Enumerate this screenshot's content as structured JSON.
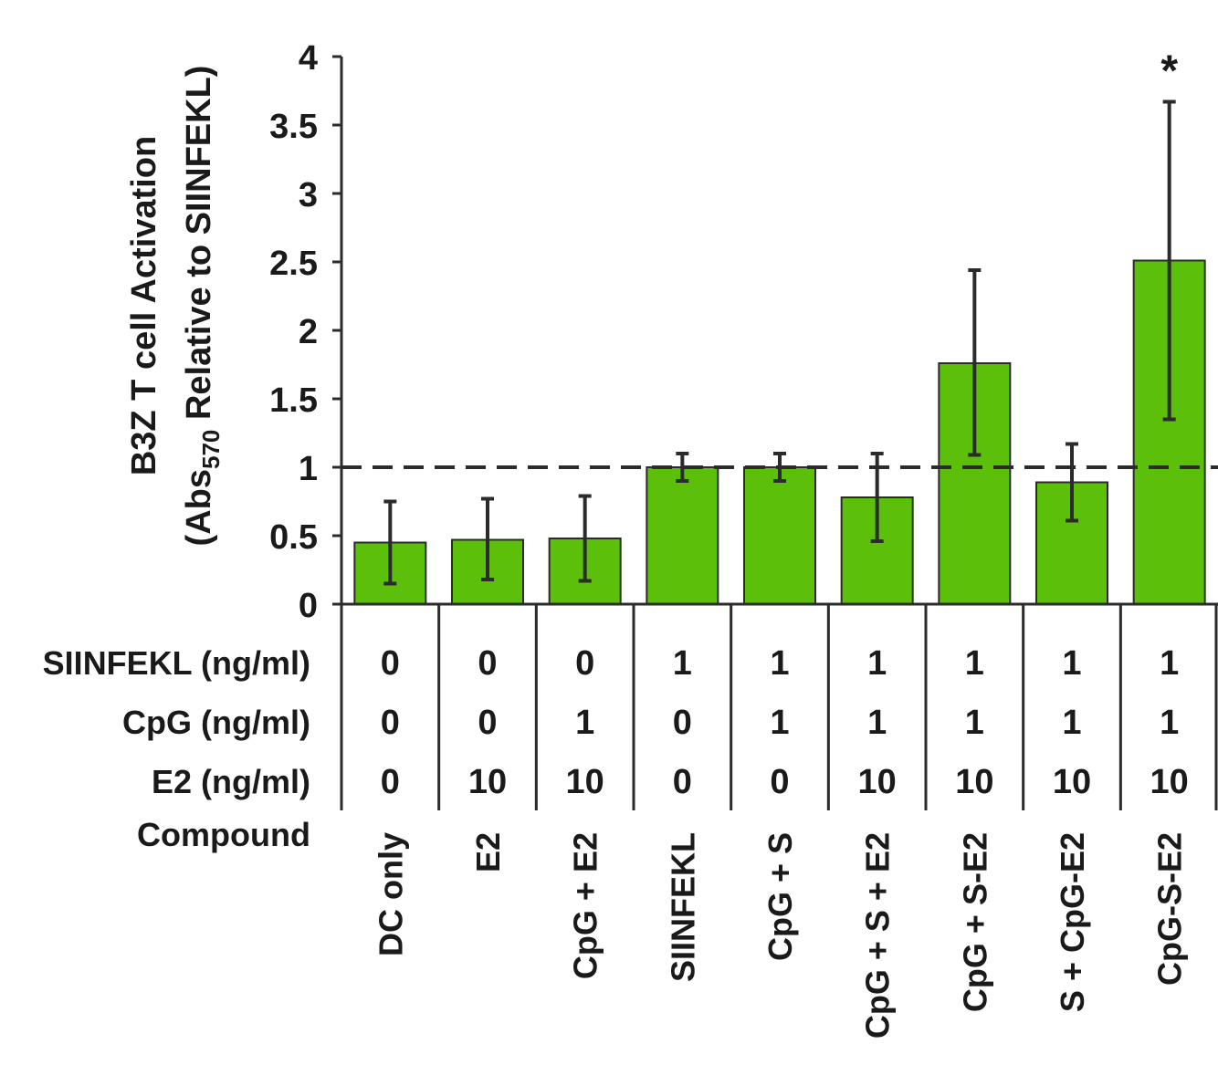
{
  "chart_data": {
    "type": "bar",
    "ylabel_line1": "B3Z T cell Activation",
    "ylabel_line2_pre": "(Abs",
    "ylabel_line2_sub": "570",
    "ylabel_line2_post": " Relative to SIINFEKL)",
    "ylim": [
      0,
      4
    ],
    "yticks": [
      "0",
      "0.5",
      "1",
      "1.5",
      "2",
      "2.5",
      "3",
      "3.5",
      "4"
    ],
    "reference_line": 1,
    "categories": [
      "DC only",
      "E2",
      "CpG + E2",
      "SIINFEKL",
      "CpG + S",
      "CpG + S + E2",
      "CpG + S-E2",
      "S + CpG-E2",
      "CpG-S-E2"
    ],
    "values": [
      0.45,
      0.47,
      0.48,
      1.0,
      1.0,
      0.78,
      1.76,
      0.89,
      2.51
    ],
    "error_low": [
      0.15,
      0.18,
      0.17,
      0.9,
      0.9,
      0.46,
      1.09,
      0.61,
      1.35
    ],
    "error_high": [
      0.75,
      0.77,
      0.79,
      1.1,
      1.1,
      1.1,
      2.44,
      1.17,
      3.67
    ],
    "annotations": [
      "",
      "",
      "",
      "",
      "",
      "",
      "",
      "",
      "*"
    ],
    "bar_color": "#5cbf0a",
    "table": {
      "rows": [
        {
          "label": "SIINFEKL (ng/ml)",
          "values": [
            "0",
            "0",
            "0",
            "1",
            "1",
            "1",
            "1",
            "1",
            "1"
          ]
        },
        {
          "label": "CpG (ng/ml)",
          "values": [
            "0",
            "0",
            "1",
            "0",
            "1",
            "1",
            "1",
            "1",
            "1"
          ]
        },
        {
          "label": "E2 (ng/ml)",
          "values": [
            "0",
            "10",
            "10",
            "0",
            "0",
            "10",
            "10",
            "10",
            "10"
          ]
        }
      ],
      "compound_label": "Compound"
    }
  }
}
